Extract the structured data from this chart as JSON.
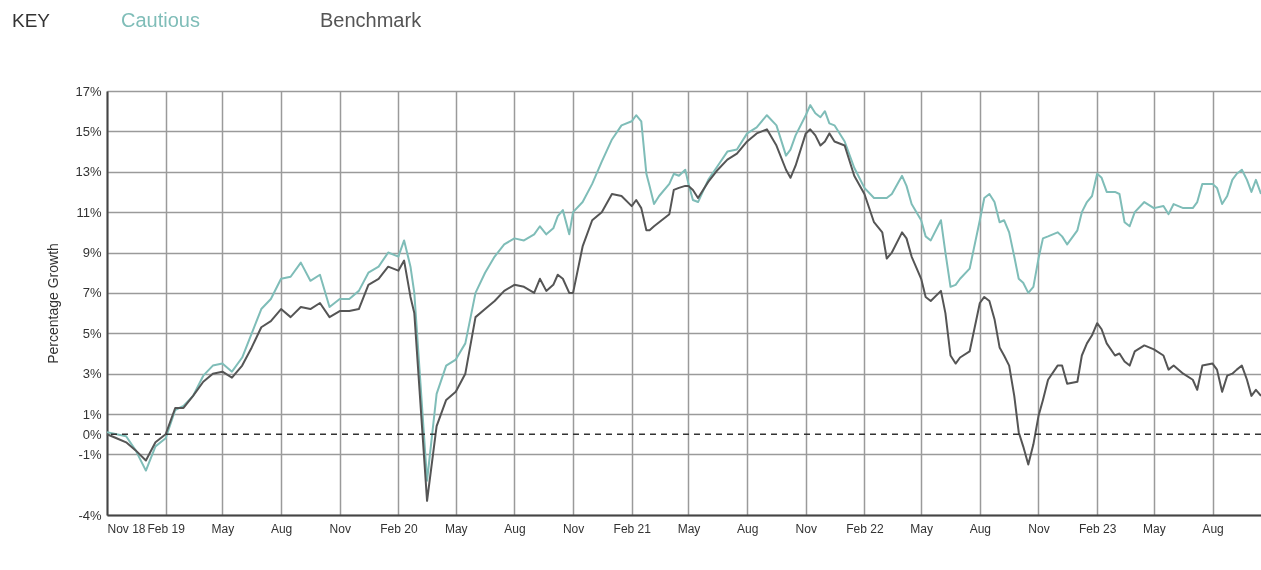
{
  "chart_data": {
    "type": "line",
    "ylabel": "Percentage Growth",
    "legend_title": "KEY",
    "legend": "top left",
    "grid": true,
    "x": [
      "2018-11-01",
      "2018-11-16",
      "2018-12-01",
      "2018-12-16",
      "2019-01-01",
      "2019-01-16",
      "2019-02-01",
      "2019-02-16",
      "2019-03-01",
      "2019-03-16",
      "2019-04-01",
      "2019-04-16",
      "2019-05-01",
      "2019-05-16",
      "2019-06-01",
      "2019-06-16",
      "2019-07-01",
      "2019-07-16",
      "2019-08-01",
      "2019-08-16",
      "2019-09-01",
      "2019-09-16",
      "2019-10-01",
      "2019-10-16",
      "2019-11-01",
      "2019-11-16",
      "2019-12-01",
      "2019-12-16",
      "2020-01-01",
      "2020-01-16",
      "2020-02-01",
      "2020-02-10",
      "2020-02-20",
      "2020-02-26",
      "2020-03-17",
      "2020-04-01",
      "2020-04-16",
      "2020-05-01",
      "2020-05-16",
      "2020-06-01",
      "2020-06-16",
      "2020-07-01",
      "2020-07-16",
      "2020-08-01",
      "2020-08-16",
      "2020-09-01",
      "2020-09-10",
      "2020-09-20",
      "2020-10-01",
      "2020-10-08",
      "2020-10-16",
      "2020-10-26",
      "2020-11-01",
      "2020-11-16",
      "2020-12-01",
      "2020-12-16",
      "2021-01-01",
      "2021-01-16",
      "2021-02-01",
      "2021-02-08",
      "2021-02-16",
      "2021-02-24",
      "2021-03-01",
      "2021-03-08",
      "2021-03-16",
      "2021-04-01",
      "2021-04-08",
      "2021-04-16",
      "2021-04-26",
      "2021-05-01",
      "2021-05-08",
      "2021-05-16",
      "2021-06-01",
      "2021-06-16",
      "2021-07-01",
      "2021-07-16",
      "2021-08-01",
      "2021-08-16",
      "2021-09-01",
      "2021-09-16",
      "2021-10-01",
      "2021-10-08",
      "2021-10-16",
      "2021-11-01",
      "2021-11-08",
      "2021-11-16",
      "2021-11-24",
      "2021-12-01",
      "2021-12-08",
      "2021-12-16",
      "2022-01-01",
      "2022-01-16",
      "2022-02-01",
      "2022-02-16",
      "2022-03-01",
      "2022-03-08",
      "2022-03-16",
      "2022-04-01",
      "2022-04-08",
      "2022-04-16",
      "2022-05-01",
      "2022-05-08",
      "2022-05-16",
      "2022-06-01",
      "2022-06-08",
      "2022-06-16",
      "2022-06-24",
      "2022-07-01",
      "2022-07-16",
      "2022-08-01",
      "2022-08-08",
      "2022-08-16",
      "2022-08-24",
      "2022-09-01",
      "2022-09-08",
      "2022-09-16",
      "2022-09-24",
      "2022-10-01",
      "2022-10-08",
      "2022-10-16",
      "2022-10-24",
      "2022-11-01",
      "2022-11-08",
      "2022-11-16",
      "2022-12-01",
      "2022-12-08",
      "2022-12-16",
      "2023-01-01",
      "2023-01-08",
      "2023-01-16",
      "2023-01-24",
      "2023-02-01",
      "2023-02-08",
      "2023-02-16",
      "2023-03-01",
      "2023-03-08",
      "2023-03-16",
      "2023-03-24",
      "2023-04-01",
      "2023-04-16",
      "2023-05-01",
      "2023-05-16",
      "2023-05-24",
      "2023-06-01",
      "2023-06-16",
      "2023-07-01",
      "2023-07-08",
      "2023-07-16",
      "2023-08-01",
      "2023-08-08",
      "2023-08-16",
      "2023-08-24",
      "2023-09-01",
      "2023-09-08",
      "2023-09-16",
      "2023-09-24",
      "2023-10-01",
      "2023-10-08",
      "2023-10-16"
    ],
    "series": [
      {
        "name": "Cautious",
        "color": "#7fbdb8",
        "values": [
          0.1,
          0,
          -0.1,
          -0.8,
          -1.8,
          -0.6,
          -0.2,
          1.2,
          1.4,
          1.9,
          2.9,
          3.4,
          3.5,
          3.1,
          3.8,
          5.0,
          6.2,
          6.7,
          7.7,
          7.8,
          8.5,
          7.6,
          7.9,
          6.3,
          6.7,
          6.7,
          7.1,
          8.0,
          8.3,
          9.0,
          8.8,
          9.6,
          8.3,
          7.0,
          -2.3,
          2.0,
          3.4,
          3.7,
          4.5,
          7.0,
          8.0,
          8.8,
          9.4,
          9.7,
          9.6,
          9.9,
          10.3,
          9.9,
          10.2,
          10.8,
          11.1,
          9.9,
          11.0,
          11.5,
          12.4,
          13.5,
          14.6,
          15.3,
          15.5,
          15.8,
          15.5,
          12.9,
          12.3,
          11.4,
          11.8,
          12.4,
          12.9,
          12.8,
          13.1,
          12.4,
          11.6,
          11.5,
          12.6,
          13.3,
          14.0,
          14.1,
          14.9,
          15.2,
          15.8,
          15.3,
          13.8,
          14.1,
          14.8,
          15.8,
          16.3,
          15.9,
          15.7,
          16.0,
          15.4,
          15.3,
          14.5,
          13.2,
          12.2,
          11.7,
          11.7,
          11.7,
          11.9,
          12.8,
          12.3,
          11.4,
          10.6,
          9.8,
          9.6,
          10.6,
          9.0,
          7.3,
          7.4,
          7.7,
          8.2,
          10.6,
          11.7,
          11.9,
          11.5,
          10.5,
          10.6,
          10.0,
          8.8,
          7.7,
          7.5,
          7.0,
          7.3,
          8.7,
          9.7,
          9.8,
          10.0,
          9.8,
          9.4,
          10.1,
          11.0,
          11.5,
          11.8,
          12.9,
          12.7,
          12.0,
          12.0,
          11.9,
          10.5,
          10.3,
          11.0,
          11.5,
          11.2,
          11.3,
          10.9,
          11.4,
          11.2,
          11.2,
          11.5,
          12.4,
          12.4,
          12.2,
          11.4,
          11.8,
          12.6,
          12.9,
          13.1,
          12.6,
          12.0,
          12.6,
          11.9
        ]
      },
      {
        "name": "Benchmark",
        "color": "#555555",
        "values": [
          0,
          -0.2,
          -0.4,
          -0.8,
          -1.3,
          -0.4,
          0,
          1.3,
          1.3,
          1.9,
          2.6,
          3.0,
          3.1,
          2.8,
          3.4,
          4.3,
          5.3,
          5.6,
          6.2,
          5.8,
          6.3,
          6.2,
          6.5,
          5.8,
          6.1,
          6.1,
          6.2,
          7.4,
          7.7,
          8.3,
          8.1,
          8.6,
          6.8,
          6.0,
          -3.3,
          0.4,
          1.7,
          2.1,
          3.0,
          5.8,
          6.2,
          6.6,
          7.1,
          7.4,
          7.3,
          7.0,
          7.7,
          7.1,
          7.4,
          7.9,
          7.7,
          7.0,
          7.0,
          9.3,
          10.6,
          11.0,
          11.9,
          11.8,
          11.3,
          11.6,
          11.2,
          10.1,
          10.1,
          10.3,
          10.5,
          10.9,
          12.1,
          12.2,
          12.3,
          12.3,
          12.1,
          11.7,
          12.5,
          13.1,
          13.6,
          13.9,
          14.5,
          14.9,
          15.1,
          14.3,
          13.1,
          12.7,
          13.3,
          14.9,
          15.1,
          14.8,
          14.3,
          14.5,
          14.9,
          14.5,
          14.3,
          12.8,
          11.9,
          10.5,
          10.0,
          8.7,
          9.0,
          10.0,
          9.7,
          8.8,
          7.7,
          6.8,
          6.6,
          7.1,
          6.0,
          3.9,
          3.5,
          3.8,
          4.1,
          6.5,
          6.8,
          6.6,
          5.7,
          4.3,
          3.9,
          3.4,
          1.9,
          0.1,
          -0.6,
          -1.5,
          -0.5,
          0.9,
          1.7,
          2.7,
          3.4,
          3.4,
          2.5,
          2.6,
          3.9,
          4.5,
          4.9,
          5.5,
          5.2,
          4.5,
          3.9,
          4.0,
          3.6,
          3.4,
          4.1,
          4.4,
          4.2,
          3.9,
          3.2,
          3.4,
          3.0,
          2.7,
          2.2,
          3.4,
          3.5,
          3.2,
          2.1,
          2.9,
          3.0,
          3.2,
          3.4,
          2.7,
          1.9,
          2.2,
          1.9
        ]
      }
    ],
    "xlim": [
      "2018-11-01",
      "2023-10-16"
    ],
    "xticks": [
      {
        "value": "2018-11-01",
        "label": "Nov 18"
      },
      {
        "value": "2019-02-01",
        "label": "Feb 19"
      },
      {
        "value": "2019-05-01",
        "label": "May"
      },
      {
        "value": "2019-08-01",
        "label": "Aug"
      },
      {
        "value": "2019-11-01",
        "label": "Nov"
      },
      {
        "value": "2020-02-01",
        "label": "Feb 20"
      },
      {
        "value": "2020-05-01",
        "label": "May"
      },
      {
        "value": "2020-08-01",
        "label": "Aug"
      },
      {
        "value": "2020-11-01",
        "label": "Nov"
      },
      {
        "value": "2021-02-01",
        "label": "Feb 21"
      },
      {
        "value": "2021-05-01",
        "label": "May"
      },
      {
        "value": "2021-08-01",
        "label": "Aug"
      },
      {
        "value": "2021-11-01",
        "label": "Nov"
      },
      {
        "value": "2022-02-01",
        "label": "Feb 22"
      },
      {
        "value": "2022-05-01",
        "label": "May"
      },
      {
        "value": "2022-08-01",
        "label": "Aug"
      },
      {
        "value": "2022-11-01",
        "label": "Nov"
      },
      {
        "value": "2023-02-01",
        "label": "Feb 23"
      },
      {
        "value": "2023-05-01",
        "label": "May"
      },
      {
        "value": "2023-08-01",
        "label": "Aug"
      }
    ],
    "ylim": [
      -4,
      17
    ],
    "yticks": [
      {
        "value": 17,
        "label": "17%"
      },
      {
        "value": 15,
        "label": "15%"
      },
      {
        "value": 13,
        "label": "13%"
      },
      {
        "value": 11,
        "label": "11%"
      },
      {
        "value": 9,
        "label": "9%"
      },
      {
        "value": 7,
        "label": "7%"
      },
      {
        "value": 5,
        "label": "5%"
      },
      {
        "value": 3,
        "label": "3%"
      },
      {
        "value": 1,
        "label": "1%"
      },
      {
        "value": 0,
        "label": "0%"
      },
      {
        "value": -1,
        "label": "-1%"
      },
      {
        "value": -4,
        "label": "-4%"
      }
    ],
    "ref_lines": [
      {
        "axis": "y",
        "value": 0,
        "color": "#333333",
        "line_style": "dashed"
      }
    ]
  }
}
